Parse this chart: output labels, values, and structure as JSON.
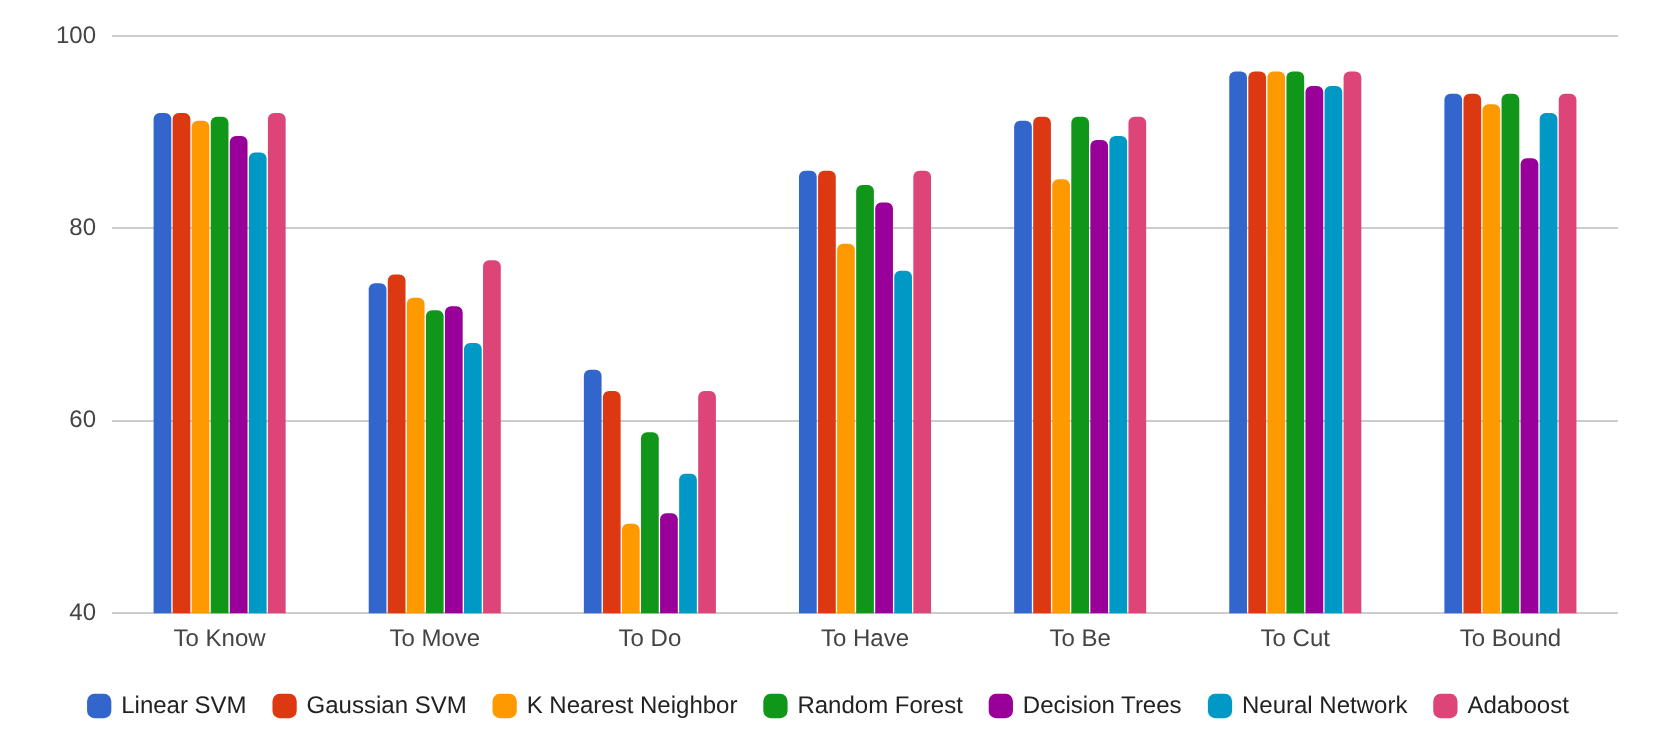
{
  "chart_data": {
    "type": "bar",
    "categories": [
      "To Know",
      "To Move",
      "To Do",
      "To Have",
      "To Be",
      "To Cut",
      "To Bound"
    ],
    "series": [
      {
        "name": "Linear SVM",
        "color": "#3366cc",
        "values": [
          92.0,
          74.3,
          65.3,
          86.0,
          91.2,
          96.3,
          94.0
        ]
      },
      {
        "name": "Gaussian SVM",
        "color": "#dc3912",
        "values": [
          92.0,
          75.2,
          63.1,
          86.0,
          91.6,
          96.3,
          94.0
        ]
      },
      {
        "name": "K Nearest Neighbor",
        "color": "#ff9900",
        "values": [
          91.2,
          72.8,
          49.3,
          78.4,
          85.1,
          96.3,
          92.9
        ]
      },
      {
        "name": "Random Forest",
        "color": "#109618",
        "values": [
          91.6,
          71.5,
          58.8,
          84.5,
          91.6,
          96.3,
          94.0
        ]
      },
      {
        "name": "Decision Trees",
        "color": "#990099",
        "values": [
          89.6,
          71.9,
          50.4,
          82.7,
          89.2,
          94.8,
          87.3
        ]
      },
      {
        "name": "Neural Network",
        "color": "#0099c6",
        "values": [
          87.9,
          68.1,
          54.5,
          75.6,
          89.6,
          94.8,
          92.0
        ]
      },
      {
        "name": "Adaboost",
        "color": "#dd4477",
        "values": [
          92.0,
          76.7,
          63.1,
          86.0,
          91.6,
          96.3,
          94.0
        ]
      }
    ],
    "ylim": [
      40,
      100
    ],
    "yticks": [
      40,
      60,
      80,
      100
    ],
    "grid": "y",
    "legend": "bottom"
  }
}
